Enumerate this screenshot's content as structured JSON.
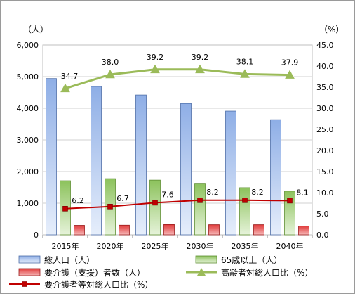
{
  "chart_data": {
    "type": "bar",
    "left_unit": "（人）",
    "right_unit": "（%）",
    "categories": [
      "2015年",
      "2020年",
      "2025年",
      "2030年",
      "2035年",
      "2040年"
    ],
    "y_left": {
      "ylim": [
        0,
        6000
      ],
      "ticks": [
        "0",
        "1,000",
        "2,000",
        "3,000",
        "4,000",
        "5,000",
        "6,000"
      ]
    },
    "y_right": {
      "ylim": [
        0,
        45
      ],
      "ticks": [
        "0.0",
        "5.0",
        "10.0",
        "15.0",
        "20.0",
        "25.0",
        "30.0",
        "35.0",
        "40.0",
        "45.0"
      ]
    },
    "grid": true,
    "legend_position": "bottom",
    "series": [
      {
        "name": "総人口（人）",
        "kind": "bar",
        "axis": "left",
        "color": "#9ab4e6",
        "values": [
          4940,
          4690,
          4420,
          4150,
          3910,
          3640
        ]
      },
      {
        "name": "65歳以上（人）",
        "kind": "bar",
        "axis": "left",
        "color": "#9ccc6e",
        "values": [
          1710,
          1775,
          1730,
          1630,
          1490,
          1380
        ]
      },
      {
        "name": "要介護（支援）者数（人）",
        "kind": "bar",
        "axis": "left",
        "color": "#d83030",
        "values": [
          300,
          305,
          325,
          320,
          320,
          280
        ]
      },
      {
        "name": "高齢者対総人口比（%）",
        "kind": "line",
        "axis": "right",
        "color": "#9bbb59",
        "marker": "triangle",
        "values": [
          34.7,
          38.0,
          39.2,
          39.2,
          38.1,
          37.9
        ],
        "labels": [
          "34.7",
          "38.0",
          "39.2",
          "39.2",
          "38.1",
          "37.9"
        ]
      },
      {
        "name": "要介護者等対総人口比（%）",
        "kind": "line",
        "axis": "right",
        "color": "#c00000",
        "marker": "square",
        "values": [
          6.2,
          6.7,
          7.6,
          8.2,
          8.2,
          8.1
        ],
        "labels": [
          "6.2",
          "6.7",
          "7.6",
          "8.2",
          "8.2",
          "8.1"
        ]
      }
    ]
  }
}
